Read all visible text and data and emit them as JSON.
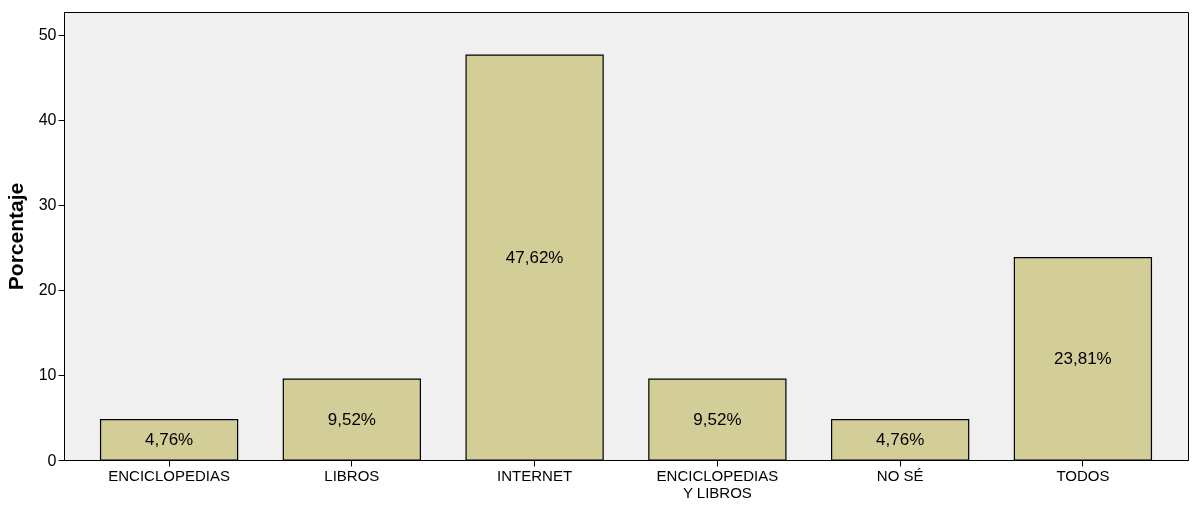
{
  "chart_data": {
    "type": "bar",
    "ylabel": "Porcentaje",
    "categories": [
      "ENCICLOPEDIAS",
      "LIBROS",
      "INTERNET",
      "ENCICLOPEDIAS Y LIBROS",
      "NO SÉ",
      "TODOS"
    ],
    "values": [
      4.76,
      9.52,
      47.62,
      9.52,
      4.76,
      23.81
    ],
    "value_labels": [
      "4,76%",
      "9,52%",
      "47,62%",
      "9,52%",
      "4,76%",
      "23,81%"
    ],
    "color": "#d3ce98",
    "ylim": [
      0,
      52.7
    ],
    "yticks": [
      0,
      10,
      20,
      30,
      40,
      50
    ]
  }
}
